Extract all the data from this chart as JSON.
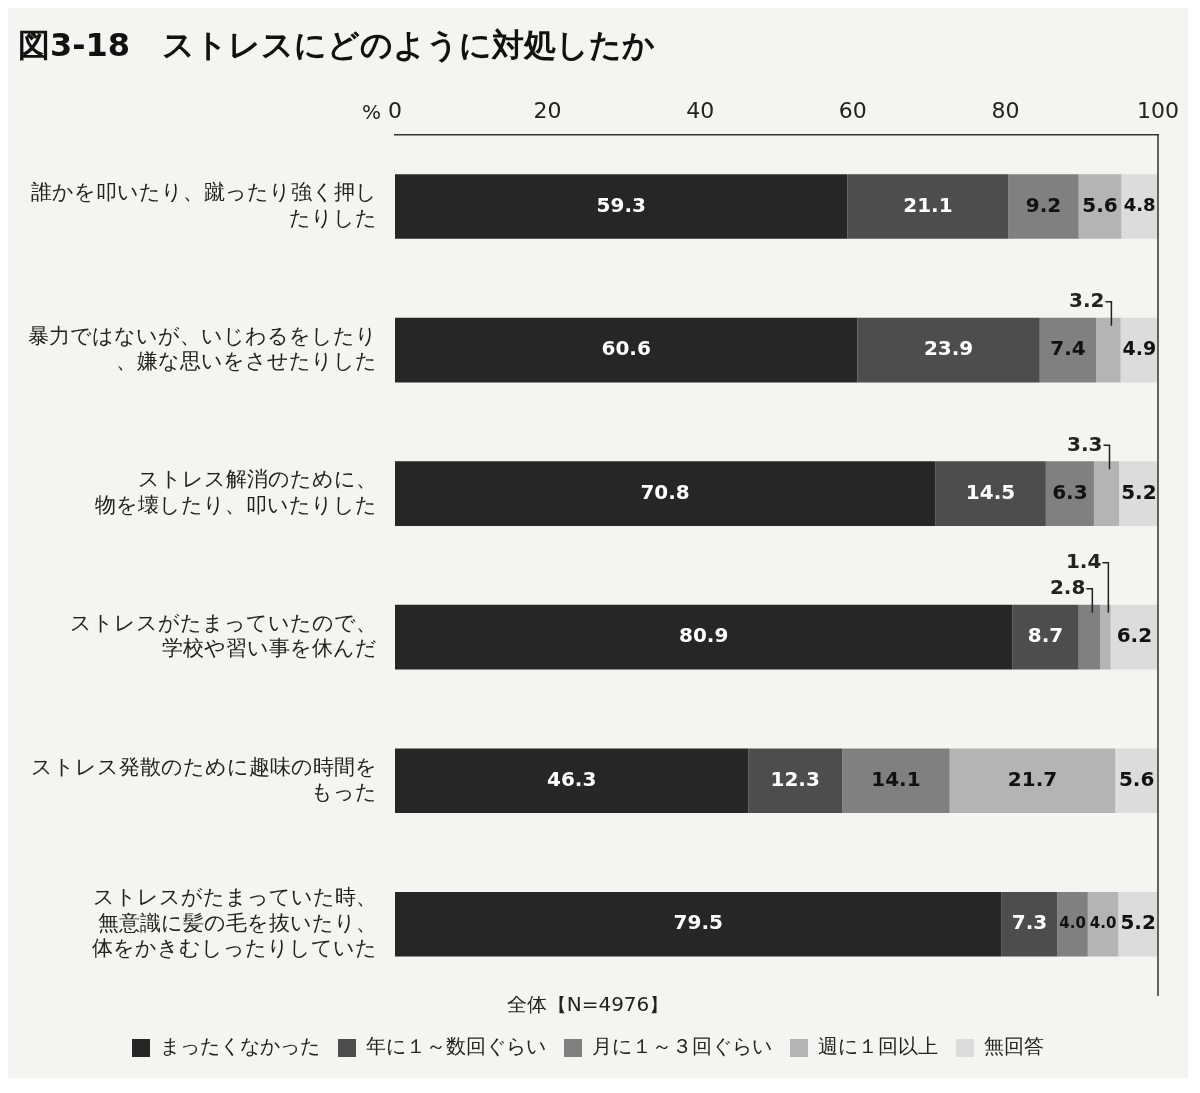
{
  "chart_data": {
    "type": "bar",
    "orientation": "horizontal",
    "stacked": true,
    "title": "図3-18　ストレスにどのように対処したか",
    "xlabel": "%",
    "legend_title": "全体【N=4976】",
    "legend": "bottom",
    "grid": false,
    "categories": [
      "誰かを叩いたり、蹴ったり強く押したりした",
      "暴力ではないが、いじわるをしたり、嫌な思いをさせたりした",
      "ストレス解消のために、物を壊したり、叩いたりした",
      "ストレスがたまっていたので、学校や習い事を休んだ",
      "ストレス発散のために趣味の時間をもった",
      "ストレスがたまっていた時、無意識に髪の毛を抜いたり、体をかきむしったりしていた"
    ],
    "xlim": [
      0,
      100
    ],
    "xticks": [
      0,
      20,
      40,
      60,
      80,
      100
    ],
    "series": [
      {
        "name": "まったくなかった",
        "color": "#262626",
        "values": [
          59.3,
          60.6,
          70.8,
          80.9,
          46.3,
          79.5
        ],
        "value_labels": [
          "59.3",
          "60.6",
          "70.8",
          "80.9",
          "46.3",
          "79.5"
        ]
      },
      {
        "name": "年に１～数回ぐらい",
        "color": "#4d4d4d",
        "values": [
          21.1,
          23.9,
          14.5,
          8.7,
          12.3,
          7.3
        ],
        "value_labels": [
          "21.1",
          "23.9",
          "14.5",
          "8.7",
          "12.3",
          "7.3"
        ]
      },
      {
        "name": "月に１～３回ぐらい",
        "color": "#808080",
        "values": [
          9.2,
          7.4,
          6.3,
          2.8,
          14.1,
          4.0
        ],
        "value_labels": [
          "9.2",
          "7.4",
          "6.3",
          "2.8",
          "14.1",
          "4.0"
        ]
      },
      {
        "name": "週に１回以上",
        "color": "#b4b4b4",
        "values": [
          5.6,
          3.2,
          3.3,
          1.4,
          21.7,
          4.0
        ],
        "value_labels": [
          "5.6",
          "3.2",
          "3.3",
          "1.4",
          "21.7",
          "4.0"
        ]
      },
      {
        "name": "無回答",
        "color": "#dcdcdc",
        "values": [
          4.8,
          4.9,
          5.2,
          6.2,
          5.6,
          5.2
        ],
        "value_labels": [
          "4.8",
          "4.9",
          "5.2",
          "6.2",
          "5.6",
          "5.2"
        ]
      }
    ]
  }
}
